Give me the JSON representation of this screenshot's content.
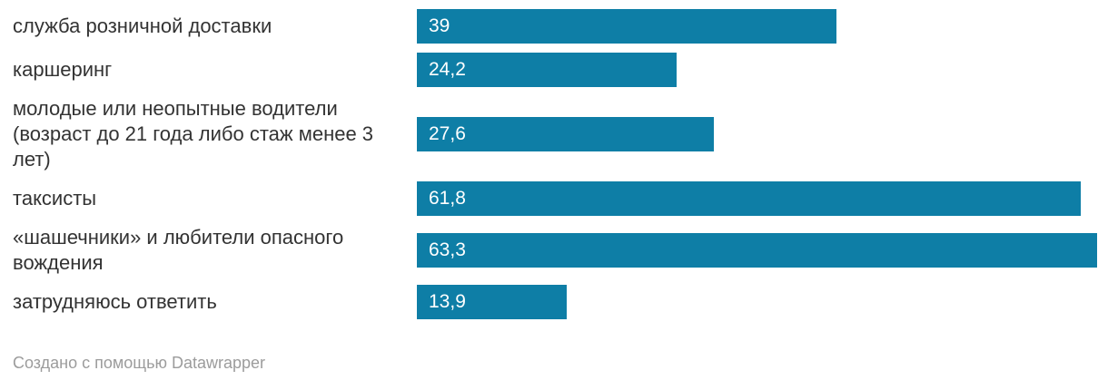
{
  "chart_data": {
    "type": "bar",
    "orientation": "horizontal",
    "title": "",
    "xlabel": "",
    "ylabel": "",
    "grid": false,
    "legend": false,
    "xlim": [
      0,
      64.3
    ],
    "categories": [
      "служба розничной доставки",
      "каршеринг",
      "молодые или неопытные водители (возраст до 21 года либо стаж менее 3 лет)",
      "таксисты",
      "«шашечники» и любители опасного вождения",
      "затрудняюсь ответить"
    ],
    "values": [
      39,
      24.2,
      27.6,
      61.8,
      63.3,
      13.9
    ],
    "value_labels": [
      "39",
      "24,2",
      "27,6",
      "61,8",
      "63,3",
      "13,9"
    ],
    "bar_color": "#0e7ea6",
    "value_label_color": "#ffffff"
  },
  "colors": {
    "background": "#ffffff",
    "category_text": "#333333",
    "footer_text": "#9c9c9c"
  },
  "footer": {
    "attribution": "Создано с помощью Datawrapper"
  }
}
